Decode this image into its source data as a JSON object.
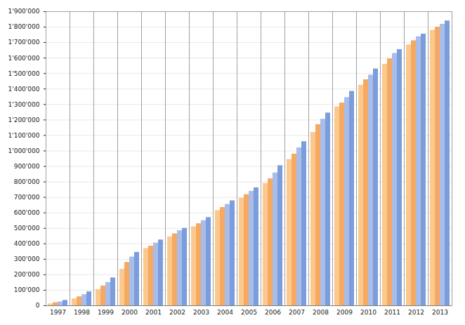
{
  "chart_data": {
    "type": "bar",
    "categories": [
      "1997",
      "1998",
      "1999",
      "2000",
      "2001",
      "2002",
      "2003",
      "2004",
      "2005",
      "2006",
      "2007",
      "2008",
      "2009",
      "2010",
      "2011",
      "2012",
      "2013"
    ],
    "series": [
      {
        "color": "#fbc98e",
        "values": [
          12000,
          45000,
          105000,
          235000,
          370000,
          445000,
          510000,
          615000,
          695000,
          790000,
          945000,
          1120000,
          1285000,
          1425000,
          1560000,
          1685000,
          1780000
        ]
      },
      {
        "color": "#f6a962",
        "values": [
          20000,
          58000,
          128000,
          280000,
          385000,
          465000,
          530000,
          635000,
          718000,
          820000,
          980000,
          1170000,
          1310000,
          1460000,
          1595000,
          1712000,
          1800000
        ]
      },
      {
        "color": "#a8bdea",
        "values": [
          25000,
          72000,
          150000,
          315000,
          405000,
          485000,
          550000,
          655000,
          740000,
          858000,
          1020000,
          1205000,
          1345000,
          1490000,
          1630000,
          1738000,
          1818000
        ]
      },
      {
        "color": "#7b9ddc",
        "values": [
          35000,
          90000,
          180000,
          345000,
          425000,
          500000,
          570000,
          678000,
          762000,
          905000,
          1060000,
          1245000,
          1385000,
          1530000,
          1655000,
          1755000,
          1840000
        ]
      }
    ],
    "ylim": [
      0,
      1900000
    ],
    "yticks": [
      0,
      {
        "value": 100000,
        "label": "100'000"
      },
      {
        "value": 200000,
        "label": "200'000"
      },
      {
        "value": 300000,
        "label": "300'000"
      },
      {
        "value": 400000,
        "label": "400'000"
      },
      {
        "value": 500000,
        "label": "500'000"
      },
      {
        "value": 600000,
        "label": "600'000"
      },
      {
        "value": 700000,
        "label": "700'000"
      },
      {
        "value": 800000,
        "label": "800'000"
      },
      {
        "value": 900000,
        "label": "900'000"
      },
      {
        "value": 1000000,
        "label": "1'000'000"
      },
      {
        "value": 1100000,
        "label": "1'100'000"
      },
      {
        "value": 1200000,
        "label": "1'200'000"
      },
      {
        "value": 1300000,
        "label": "1'300'000"
      },
      {
        "value": 1400000,
        "label": "1'400'000"
      },
      {
        "value": 1500000,
        "label": "1'500'000"
      },
      {
        "value": 1600000,
        "label": "1'600'000"
      },
      {
        "value": 1700000,
        "label": "1'700'000"
      },
      {
        "value": 1800000,
        "label": "1'800'000"
      },
      {
        "value": 1900000,
        "label": "1'900'000"
      }
    ],
    "grid": true
  }
}
